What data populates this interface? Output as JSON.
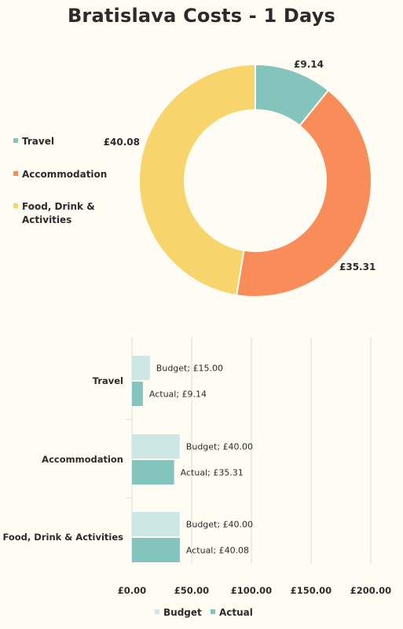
{
  "title": "Bratislava Costs - 1 Days",
  "colors": {
    "travel": "#83c5bd",
    "accommodation": "#f88d5a",
    "food": "#f7d56c",
    "budget": "#cde8e4",
    "actual": "#83c5bd",
    "grid": "#e2e0d6",
    "background": "#fefcf3"
  },
  "chart_data": [
    {
      "type": "pie",
      "variant": "donut",
      "categories": [
        "Travel",
        "Accommodation",
        "Food, Drink & Activities"
      ],
      "values": [
        9.14,
        35.31,
        40.08
      ],
      "value_labels": [
        "£9.14",
        "£35.31",
        "£40.08"
      ],
      "legend": {
        "placement": "left",
        "entries": [
          "Travel",
          "Accommodation",
          "Food, Drink &|Activities"
        ]
      }
    },
    {
      "type": "bar",
      "orientation": "horizontal",
      "categories": [
        "Travel",
        "Accommodation",
        "Food, Drink & Activities"
      ],
      "series": [
        {
          "name": "Budget",
          "values": [
            15.0,
            40.0,
            40.0
          ],
          "labels": [
            "Budget; £15.00",
            "Budget; £40.00",
            "Budget; £40.00"
          ]
        },
        {
          "name": "Actual",
          "values": [
            9.14,
            35.31,
            40.08
          ],
          "labels": [
            "Actual; £9.14",
            "Actual; £35.31",
            "Actual; £40.08"
          ]
        }
      ],
      "xlim": [
        0,
        200
      ],
      "xticks": [
        0,
        50,
        100,
        150,
        200
      ],
      "xtick_labels": [
        "£0.00",
        "£50.00",
        "£100.00",
        "£150.00",
        "£200.00"
      ],
      "grid": "vertical",
      "legend": {
        "placement": "bottom",
        "entries": [
          "Budget",
          "Actual"
        ]
      }
    }
  ]
}
